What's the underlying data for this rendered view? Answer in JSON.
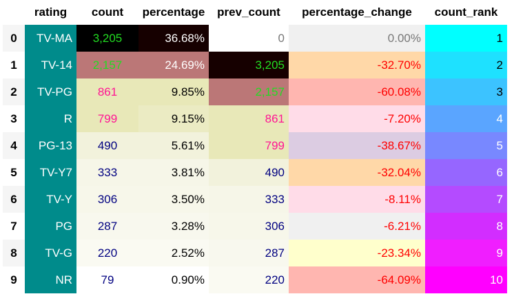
{
  "columns": {
    "index": "",
    "rating": "rating",
    "count": "count",
    "percentage": "percentage",
    "prev_count": "prev_count",
    "percentage_change": "percentage_change",
    "count_rank": "count_rank"
  },
  "styles": {
    "rating_bg": "#008b8b",
    "rating_fg": "#ffffff"
  },
  "rows": [
    {
      "idx": "0",
      "rating": "TV-MA",
      "count": "3,205",
      "percentage": "36.68%",
      "prev_count": "0",
      "percentage_change": "0.00%",
      "count_rank": "1",
      "count_fg": "#22dd22",
      "count_bg": "#000000",
      "pct_fg": "#ffffff",
      "pct_bg": "#160000",
      "prev_fg": "#777777",
      "prev_bg": "#ffffff",
      "chg_fg": "#777777",
      "chg_bg": "#f0f0f0",
      "rank_fg": "#000000",
      "rank_bg": "#00ffff"
    },
    {
      "idx": "1",
      "rating": "TV-14",
      "count": "2,157",
      "percentage": "24.69%",
      "prev_count": "3,205",
      "percentage_change": "-32.70%",
      "count_rank": "2",
      "count_fg": "#22dd22",
      "count_bg": "#bb7777",
      "pct_fg": "#ffffff",
      "pct_bg": "#bb7777",
      "prev_fg": "#22dd22",
      "prev_bg": "#160000",
      "chg_fg": "#ff0000",
      "chg_bg": "#ffd8a8",
      "rank_fg": "#000000",
      "rank_bg": "#1ee1ff"
    },
    {
      "idx": "2",
      "rating": "TV-PG",
      "count": "861",
      "percentage": "9.85%",
      "prev_count": "2,157",
      "percentage_change": "-60.08%",
      "count_rank": "3",
      "count_fg": "#ff1493",
      "count_bg": "#e8e8b8",
      "pct_fg": "#000000",
      "pct_bg": "#e8e8b8",
      "prev_fg": "#22dd22",
      "prev_bg": "#bb7777",
      "chg_fg": "#ff0000",
      "chg_bg": "#ffb6b0",
      "rank_fg": "#000000",
      "rank_bg": "#3cc3ff"
    },
    {
      "idx": "3",
      "rating": "R",
      "count": "799",
      "percentage": "9.15%",
      "prev_count": "861",
      "percentage_change": "-7.20%",
      "count_rank": "4",
      "count_fg": "#ff1493",
      "count_bg": "#e8e8b8",
      "pct_fg": "#000000",
      "pct_bg": "#ebebc3",
      "prev_fg": "#ff1493",
      "prev_bg": "#e8e8b8",
      "chg_fg": "#ff0000",
      "chg_bg": "#ffdce8",
      "rank_fg": "#ffffff",
      "rank_bg": "#5aa5ff"
    },
    {
      "idx": "4",
      "rating": "PG-13",
      "count": "490",
      "percentage": "5.61%",
      "prev_count": "799",
      "percentage_change": "-38.67%",
      "count_rank": "5",
      "count_fg": "#000080",
      "count_bg": "#f2f2dc",
      "pct_fg": "#000000",
      "pct_bg": "#f2f2dc",
      "prev_fg": "#ff1493",
      "prev_bg": "#e8e8b8",
      "chg_fg": "#ff0000",
      "chg_bg": "#dccce2",
      "rank_fg": "#ffffff",
      "rank_bg": "#7888ff"
    },
    {
      "idx": "5",
      "rating": "TV-Y7",
      "count": "333",
      "percentage": "3.81%",
      "prev_count": "490",
      "percentage_change": "-32.04%",
      "count_rank": "6",
      "count_fg": "#000080",
      "count_bg": "#f6f6e8",
      "pct_fg": "#000000",
      "pct_bg": "#f6f6e8",
      "prev_fg": "#000080",
      "prev_bg": "#f2f2dc",
      "chg_fg": "#ff0000",
      "chg_bg": "#ffd8a8",
      "rank_fg": "#ffffff",
      "rank_bg": "#9666ff"
    },
    {
      "idx": "6",
      "rating": "TV-Y",
      "count": "306",
      "percentage": "3.50%",
      "prev_count": "333",
      "percentage_change": "-8.11%",
      "count_rank": "7",
      "count_fg": "#000080",
      "count_bg": "#f7f7ea",
      "pct_fg": "#000000",
      "pct_bg": "#f7f7ea",
      "prev_fg": "#000080",
      "prev_bg": "#f6f6e8",
      "chg_fg": "#ff0000",
      "chg_bg": "#ffdce8",
      "rank_fg": "#ffffff",
      "rank_bg": "#b44bff"
    },
    {
      "idx": "7",
      "rating": "PG",
      "count": "287",
      "percentage": "3.28%",
      "prev_count": "306",
      "percentage_change": "-6.21%",
      "count_rank": "8",
      "count_fg": "#000080",
      "count_bg": "#f8f8ee",
      "pct_fg": "#000000",
      "pct_bg": "#f8f8ee",
      "prev_fg": "#000080",
      "prev_bg": "#f7f7ea",
      "chg_fg": "#ff0000",
      "chg_bg": "#f0f0f0",
      "rank_fg": "#ffffff",
      "rank_bg": "#d22dff"
    },
    {
      "idx": "8",
      "rating": "TV-G",
      "count": "220",
      "percentage": "2.52%",
      "prev_count": "287",
      "percentage_change": "-23.34%",
      "count_rank": "9",
      "count_fg": "#000080",
      "count_bg": "#fafaf2",
      "pct_fg": "#000000",
      "pct_bg": "#fafaf2",
      "prev_fg": "#000080",
      "prev_bg": "#f8f8ee",
      "chg_fg": "#ff0000",
      "chg_bg": "#ffffcc",
      "rank_fg": "#ffffff",
      "rank_bg": "#f01eff"
    },
    {
      "idx": "9",
      "rating": "NR",
      "count": "79",
      "percentage": "0.90%",
      "prev_count": "220",
      "percentage_change": "-64.09%",
      "count_rank": "10",
      "count_fg": "#000080",
      "count_bg": "#ffffff",
      "pct_fg": "#000000",
      "pct_bg": "#ffffff",
      "prev_fg": "#000080",
      "prev_bg": "#fafaf2",
      "chg_fg": "#ff0000",
      "chg_bg": "#ffb6b0",
      "rank_fg": "#ffffff",
      "rank_bg": "#ff00ff"
    }
  ]
}
